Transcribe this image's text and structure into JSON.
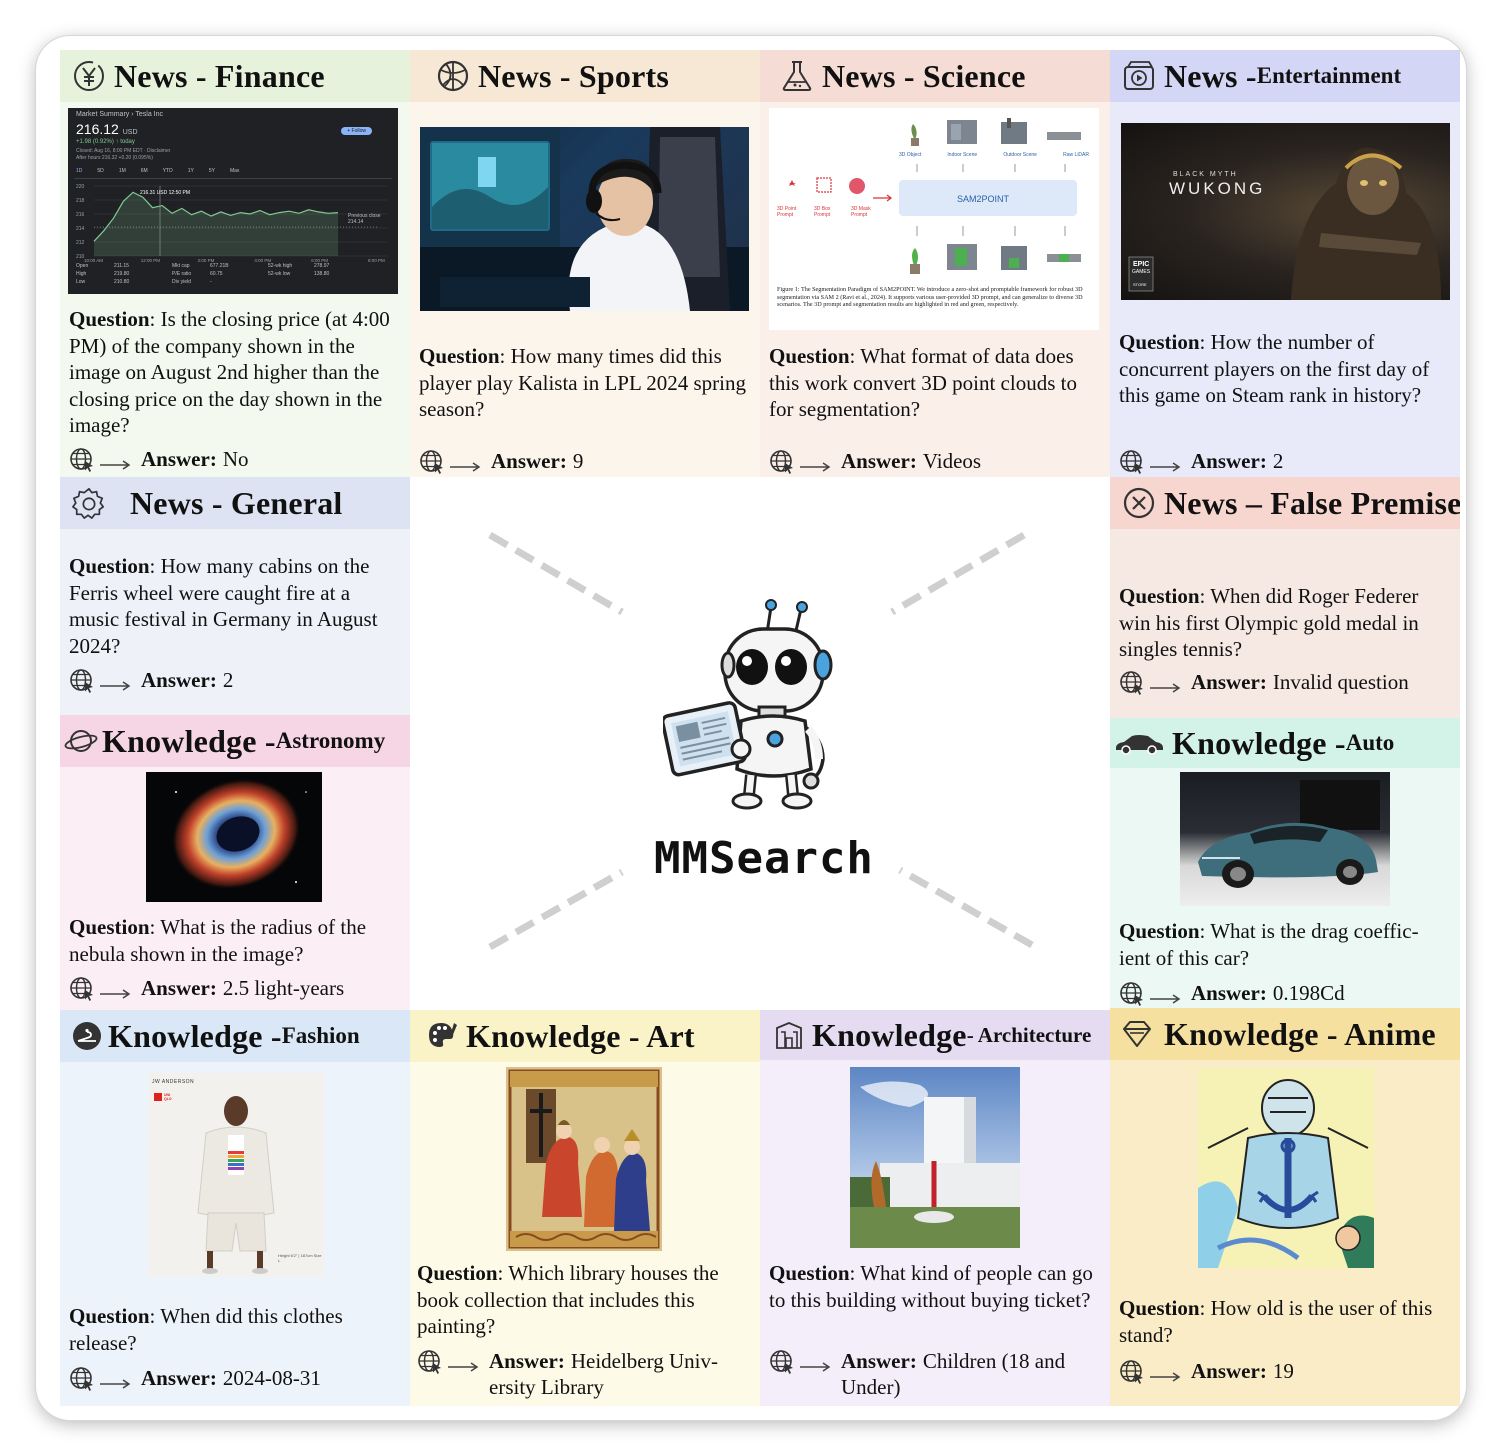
{
  "center": {
    "title": "MMSearch"
  },
  "labels": {
    "question": "Question",
    "answer": "Answer:"
  },
  "panels": {
    "finance": {
      "main": "News - Finance",
      "sub": "",
      "question": ": Is the closing price (at 4:00 PM) of the company shown in the image on August 2nd higher than the closing price on the day shown in the image?",
      "answer": "No",
      "icon": "yen-coin-icon",
      "header_color": "#e6f2dc",
      "body_color": "#f3f9ee",
      "stock": {
        "title": "Market Summary › Tesla Inc",
        "price": "216.12",
        "currency": "USD",
        "change": "+1.98 (0.92%) ↑ today",
        "closed": "Closed: Aug 16, 8:00 PM EDT · Disclaimer",
        "after": "After hours 216.32 +0.20 (0.095%)",
        "follow": "+ Follow",
        "ranges": [
          "1D",
          "5D",
          "1M",
          "6M",
          "YTD",
          "1Y",
          "5Y",
          "Max"
        ],
        "marker": "216.31 USD 12:50 PM",
        "prev": "Previous close 214.14",
        "yticks": [
          "220",
          "218",
          "216",
          "214",
          "212",
          "210"
        ],
        "xticks": [
          "10:00 AM",
          "12:00 PM",
          "2:00 PM",
          "4:00 PM",
          "6:00 PM",
          "8:00 PM"
        ],
        "stats": [
          [
            "Open",
            "211.15",
            "Mkt cap",
            "677.21B",
            "52-wk high",
            "278.97"
          ],
          [
            "High",
            "219.80",
            "P/E ratio",
            "60.75",
            "52-wk low",
            "138.80"
          ],
          [
            "Low",
            "210.80",
            "Div yield",
            "-",
            "",
            ""
          ]
        ],
        "series": [
          212.1,
          213.6,
          215.4,
          217.8,
          219.1,
          218.4,
          216.9,
          217.2,
          216.1,
          216.8,
          215.9,
          216.4,
          215.7,
          216.3,
          215.8,
          216.2,
          216.0,
          216.5,
          215.9,
          216.2,
          216.4,
          216.1,
          216.6,
          216.3,
          216.1,
          216.2
        ]
      }
    },
    "sports": {
      "main": "News - Sports",
      "sub": "",
      "question": ": How many times did this player play Kalista in LPL 2024 spring season?",
      "answer": "9",
      "icon": "basketball-icon",
      "header_color": "#f7e8d6",
      "body_color": "#fcf5ec"
    },
    "science": {
      "main": "News - Science",
      "sub": "",
      "question": ": What format of data does this work convert 3D point clouds to for segmentation?",
      "answer": "Videos",
      "icon": "flask-icon",
      "header_color": "#f5dcd4",
      "body_color": "#fbefea",
      "figure": {
        "top_labels": [
          "3D Object",
          "Indoor Scene",
          "Outdoor Scene",
          "Raw LiDAR"
        ],
        "prompts": [
          "3D Point Prompt",
          "3D Box Prompt",
          "3D Mask Prompt"
        ],
        "box": "SAM2POINT",
        "caption": "Figure 1: The Segmentation Paradigm of SAM2POINT. We introduce a zero-shot and promptable framework for robust 3D segmentation via SAM 2 (Ravi et al., 2024). It supports various user-provided 3D prompt, and can generalize to diverse 3D scenarios. The 3D prompt and segmentation results are highlighted in red and green, respectively."
      }
    },
    "entertainment": {
      "main": "News - ",
      "sub": "Entertainment",
      "question": ": How the number of concurrent players on the first day of this game on Steam rank in history?",
      "answer": "2",
      "icon": "video-icon",
      "header_color": "#d3d7f5",
      "body_color": "#e8eafa",
      "game": {
        "line1": "BLACK MYTH",
        "line2": "WUKONG",
        "badge1": "EPIC",
        "badge2": "GAMES",
        "badge3": "STORE"
      }
    },
    "general": {
      "main": "News - General",
      "sub": "",
      "question": ": How many cabins on the Ferris wheel were caught fire at a music festival in Germany in August 2024?",
      "answer": "2",
      "icon": "gear-icon",
      "header_color": "#dde3f3",
      "body_color": "#eef1f8"
    },
    "false_premise": {
      "main": "News – False Premise",
      "sub": "",
      "question": ": When did Roger Federer win his first Olympic gold medal in singles tennis?",
      "answer": "Invalid question",
      "icon": "close-circle-icon",
      "header_color": "#f7d6cf",
      "body_color": "#f6e8e2"
    },
    "astronomy": {
      "main": "Knowledge - ",
      "sub": "Astronomy",
      "question": ": What is the radius of the nebula shown in the image?",
      "answer": "2.5 light-years",
      "icon": "planet-icon",
      "header_color": "#f6d6e4",
      "body_color": "#fbeef4"
    },
    "auto": {
      "main": "Knowledge - ",
      "sub": "Auto",
      "question": ": What is the drag coefficient of this car?",
      "question_display": ": What is the drag coeffic- ient of this car?",
      "answer": "0.198Cd",
      "icon": "car-icon",
      "header_color": "#d3f2e8",
      "body_color": "#ecf8f3"
    },
    "fashion": {
      "main": "Knowledge - ",
      "sub": "Fashion",
      "question": ": When did this clothes release?",
      "answer": "2024-08-31",
      "icon": "fashion-icon",
      "header_color": "#d9e7f6",
      "body_color": "#edf3fa",
      "photo": {
        "brand": "JW ANDERSON",
        "logo": "UNI QLO",
        "note": "Height 6'2\" | 187cm Size L"
      }
    },
    "art": {
      "main": "Knowledge - Art",
      "sub": "",
      "question": ": Which library houses the book collection that includes this painting?",
      "answer": "Heidelberg University Library",
      "answer_display": "Heidelberg Univ- ersity Library",
      "icon": "palette-icon",
      "header_color": "#fbf3c8",
      "body_color": "#fdfae8"
    },
    "architecture": {
      "main": "Knowledge ",
      "sub": "- Architecture",
      "question": ": What kind of people can go to this building without buying ticket?",
      "answer": "Children (18 and Under)",
      "icon": "building-icon",
      "header_color": "#e5dcf2",
      "body_color": "#f3eef9"
    },
    "anime": {
      "main": "Knowledge - Anime",
      "sub": "",
      "question": ": How old is the user of this stand?",
      "answer": "19",
      "icon": "gem-icon",
      "header_color": "#f5e0a0",
      "body_color": "#f9ecc7"
    }
  }
}
